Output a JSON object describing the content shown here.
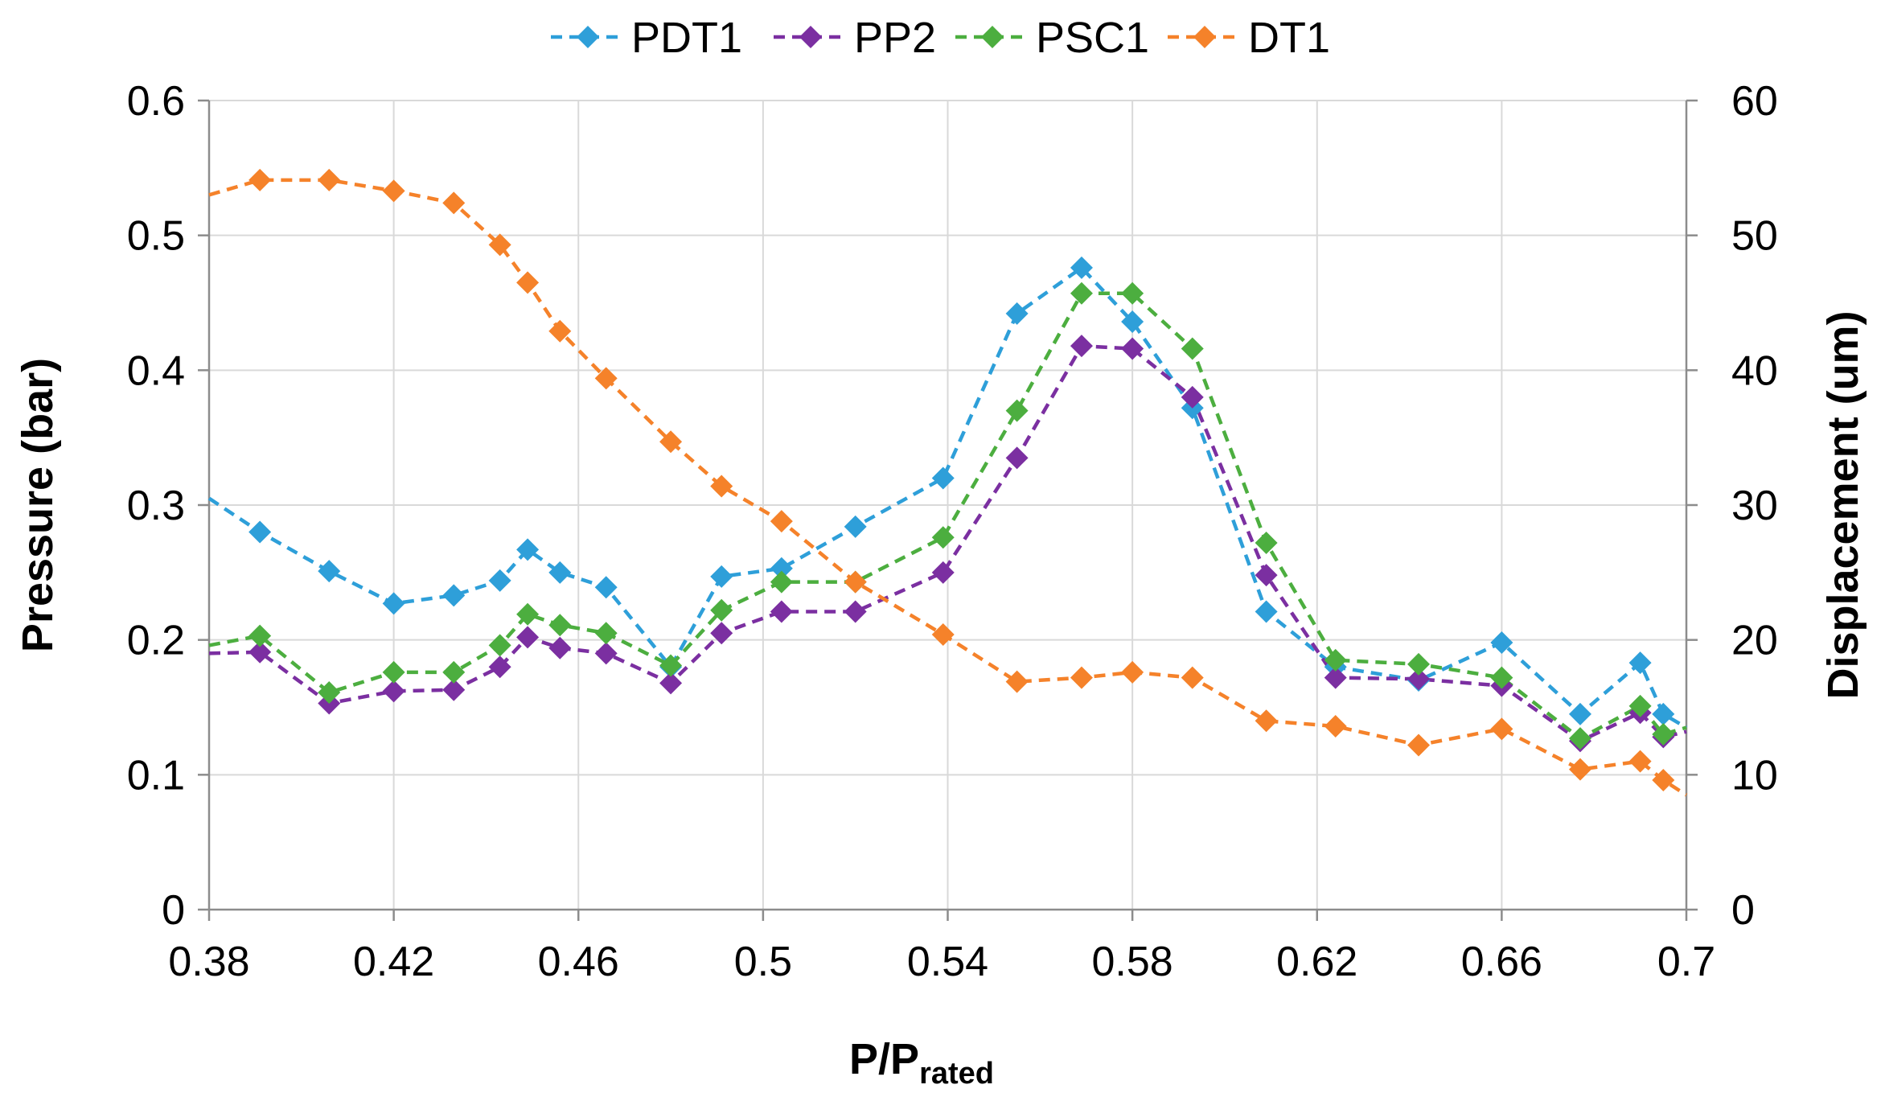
{
  "chart_data": {
    "type": "line",
    "title": "",
    "xlabel_main": "P/P",
    "xlabel_sub": "rated",
    "ylabel_left": "Pressure (bar)",
    "ylabel_right": "Displacement (um)",
    "xlim": [
      0.38,
      0.7
    ],
    "ylim_left": [
      0,
      0.6
    ],
    "ylim_right": [
      0,
      60
    ],
    "x_ticks": [
      "0.38",
      "0.42",
      "0.46",
      "0.5",
      "0.54",
      "0.58",
      "0.62",
      "0.66",
      "0.7"
    ],
    "y_left_ticks": [
      "0",
      "0.1",
      "0.2",
      "0.3",
      "0.4",
      "0.5",
      "0.6"
    ],
    "y_right_ticks": [
      "0",
      "10",
      "20",
      "30",
      "40",
      "50",
      "60"
    ],
    "grid": true,
    "legend_position": "top-center",
    "series": [
      {
        "name": "PDT1",
        "color": "#2e9fd9",
        "axis": "left",
        "x": [
          0.38,
          0.391,
          0.406,
          0.42,
          0.433,
          0.443,
          0.449,
          0.456,
          0.466,
          0.48,
          0.491,
          0.504,
          0.52,
          0.539,
          0.555,
          0.569,
          0.58,
          0.593,
          0.609,
          0.624,
          0.642,
          0.66,
          0.677,
          0.69,
          0.695,
          0.7
        ],
        "y": [
          0.305,
          0.28,
          0.251,
          0.227,
          0.233,
          0.244,
          0.267,
          0.25,
          0.239,
          0.18,
          0.247,
          0.253,
          0.284,
          0.32,
          0.442,
          0.476,
          0.436,
          0.372,
          0.221,
          0.18,
          0.17,
          0.198,
          0.145,
          0.183,
          0.145,
          0.135
        ],
        "markers": [
          false,
          true,
          true,
          true,
          true,
          true,
          true,
          true,
          true,
          true,
          true,
          true,
          true,
          true,
          true,
          true,
          true,
          true,
          true,
          true,
          true,
          true,
          true,
          true,
          true,
          false
        ]
      },
      {
        "name": "PP2",
        "color": "#7b2fa1",
        "axis": "left",
        "x": [
          0.38,
          0.391,
          0.406,
          0.42,
          0.433,
          0.443,
          0.449,
          0.456,
          0.466,
          0.48,
          0.491,
          0.504,
          0.52,
          0.539,
          0.555,
          0.569,
          0.58,
          0.593,
          0.609,
          0.624,
          0.642,
          0.66,
          0.677,
          0.69,
          0.695,
          0.7
        ],
        "y": [
          0.19,
          0.191,
          0.153,
          0.162,
          0.163,
          0.18,
          0.202,
          0.194,
          0.19,
          0.168,
          0.205,
          0.221,
          0.221,
          0.25,
          0.335,
          0.418,
          0.416,
          0.38,
          0.248,
          0.172,
          0.171,
          0.166,
          0.125,
          0.146,
          0.128,
          0.132
        ],
        "markers": [
          false,
          true,
          true,
          true,
          true,
          true,
          true,
          true,
          true,
          true,
          true,
          true,
          true,
          true,
          true,
          true,
          true,
          true,
          true,
          true,
          true,
          true,
          true,
          true,
          true,
          false
        ]
      },
      {
        "name": "PSC1",
        "color": "#4cae3f",
        "axis": "left",
        "x": [
          0.38,
          0.391,
          0.406,
          0.42,
          0.433,
          0.443,
          0.449,
          0.456,
          0.466,
          0.48,
          0.491,
          0.504,
          0.52,
          0.539,
          0.555,
          0.569,
          0.58,
          0.593,
          0.609,
          0.624,
          0.642,
          0.66,
          0.677,
          0.69,
          0.695,
          0.7
        ],
        "y": [
          0.196,
          0.203,
          0.161,
          0.176,
          0.176,
          0.196,
          0.219,
          0.211,
          0.205,
          0.181,
          0.222,
          0.243,
          0.243,
          0.276,
          0.37,
          0.457,
          0.457,
          0.416,
          0.272,
          0.185,
          0.182,
          0.172,
          0.127,
          0.151,
          0.13,
          0.135
        ],
        "markers": [
          false,
          true,
          true,
          true,
          true,
          true,
          true,
          true,
          true,
          true,
          true,
          true,
          true,
          true,
          true,
          true,
          true,
          true,
          true,
          true,
          true,
          true,
          true,
          true,
          true,
          false
        ]
      },
      {
        "name": "DT1",
        "color": "#f5822a",
        "axis": "right",
        "x": [
          0.38,
          0.391,
          0.406,
          0.42,
          0.433,
          0.443,
          0.449,
          0.456,
          0.466,
          0.48,
          0.491,
          0.504,
          0.52,
          0.539,
          0.555,
          0.569,
          0.58,
          0.593,
          0.609,
          0.624,
          0.642,
          0.66,
          0.677,
          0.69,
          0.695,
          0.7
        ],
        "y": [
          53.0,
          54.1,
          54.1,
          53.3,
          52.4,
          49.3,
          46.5,
          42.9,
          39.4,
          34.7,
          31.4,
          28.8,
          24.3,
          20.4,
          16.9,
          17.2,
          17.6,
          17.2,
          14.0,
          13.6,
          12.2,
          13.4,
          10.4,
          11.0,
          9.6,
          8.5
        ],
        "markers": [
          false,
          true,
          true,
          true,
          true,
          true,
          true,
          true,
          true,
          true,
          true,
          true,
          true,
          true,
          true,
          true,
          true,
          true,
          true,
          true,
          true,
          true,
          true,
          true,
          true,
          false
        ]
      }
    ]
  }
}
